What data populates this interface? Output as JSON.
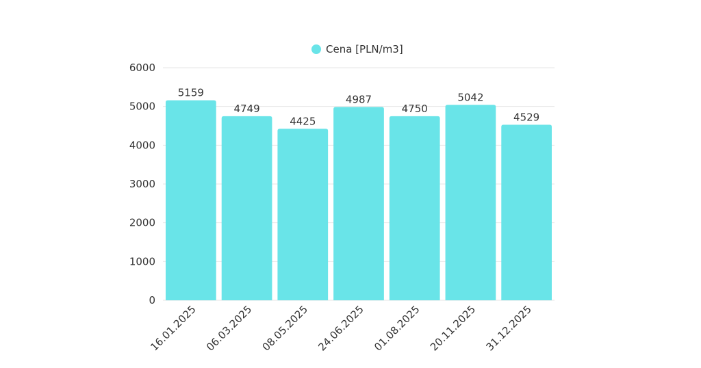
{
  "chart_data": {
    "type": "bar",
    "categories": [
      "16.01.2025",
      "06.03.2025",
      "08.05.2025",
      "24.06.2025",
      "01.08.2025",
      "20.11.2025",
      "31.12.2025"
    ],
    "series": [
      {
        "name": "Cena [PLN/m3]",
        "values": [
          5159,
          4749,
          4425,
          4987,
          4750,
          5042,
          4529
        ],
        "color": "#69e4e8"
      }
    ],
    "ylim": [
      0,
      6000
    ],
    "yticks": [
      0,
      1000,
      2000,
      3000,
      4000,
      5000,
      6000
    ],
    "grid": true,
    "legend_position": "top-center",
    "data_labels": true,
    "x_label_rotation": -45
  }
}
